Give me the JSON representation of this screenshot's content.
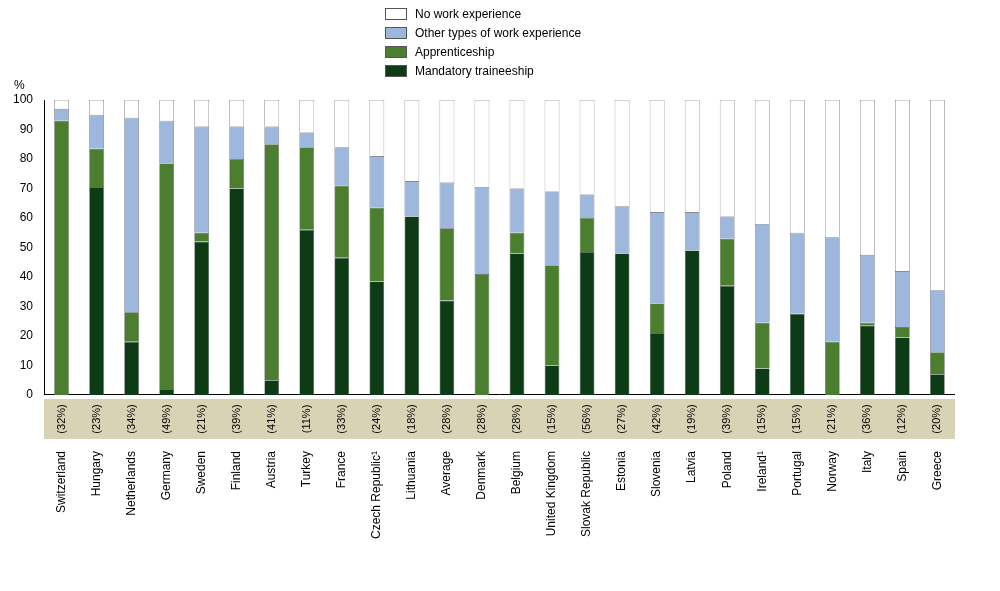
{
  "chart_data": {
    "type": "bar",
    "y_label": "%",
    "categories": [
      "Switzerland",
      "Hungary",
      "Netherlands",
      "Germany",
      "Sweden",
      "Finland",
      "Austria",
      "Turkey",
      "France",
      "Czech Republic¹",
      "Lithuania",
      "Average",
      "Denmark",
      "Belgium",
      "United Kingdom",
      "Slovak Republic",
      "Estonia",
      "Slovenia",
      "Latvia",
      "Poland",
      "Ireland¹",
      "Portugal",
      "Norway",
      "Italy",
      "Spain",
      "Greece"
    ],
    "notes": [
      "(32%)",
      "(23%)",
      "(34%)",
      "(49%)",
      "(21%)",
      "(39%)",
      "(41%)",
      "(11%)",
      "(33%)",
      "(24%)",
      "(18%)",
      "(28%)",
      "(28%)",
      "(28%)",
      "(15%)",
      "(56%)",
      "(27%)",
      "(42%)",
      "(19%)",
      "(39%)",
      "(15%)",
      "(15%)",
      "(21%)",
      "(36%)",
      "(12%)",
      "(20%)"
    ],
    "series": [
      {
        "name": "Mandatory traineeship",
        "color": "#0d3b16",
        "values": [
          0,
          70.5,
          18,
          2,
          52,
          70,
          5,
          56,
          46.5,
          38.5,
          60.5,
          32,
          0,
          48,
          10,
          48.5,
          48,
          21,
          49,
          37,
          9,
          27.5,
          0,
          23.5,
          19.5,
          7
        ]
      },
      {
        "name": "Apprenticeship",
        "color": "#4b7f2f",
        "values": [
          93,
          13,
          10,
          76.5,
          3,
          10,
          80,
          28,
          24.5,
          25,
          0,
          24.5,
          41,
          7,
          34,
          11.5,
          0,
          10,
          0,
          16,
          15.5,
          0,
          18,
          1,
          3.5,
          7.5
        ]
      },
      {
        "name": "Other types of work experience",
        "color": "#9db8dc",
        "values": [
          4,
          11.5,
          66,
          14.5,
          36,
          11,
          6,
          5,
          13,
          17.5,
          12,
          15.5,
          29.5,
          15,
          25,
          8,
          16,
          31,
          13,
          7.5,
          33.5,
          27.5,
          35.5,
          23,
          19,
          21
        ]
      },
      {
        "name": "No work experience",
        "color": "#ffffff",
        "values": [
          3,
          5,
          6,
          7,
          9,
          9,
          9,
          11,
          16,
          19,
          27.5,
          28,
          29.5,
          30,
          31,
          32,
          36,
          38,
          38,
          39.5,
          42,
          45,
          46.5,
          52.5,
          58,
          64.5
        ]
      }
    ],
    "ylim": [
      0,
      100
    ],
    "yticks": [
      0,
      10,
      20,
      30,
      40,
      50,
      60,
      70,
      80,
      90,
      100
    ],
    "stacked": true,
    "grid": false,
    "legend": "top"
  }
}
